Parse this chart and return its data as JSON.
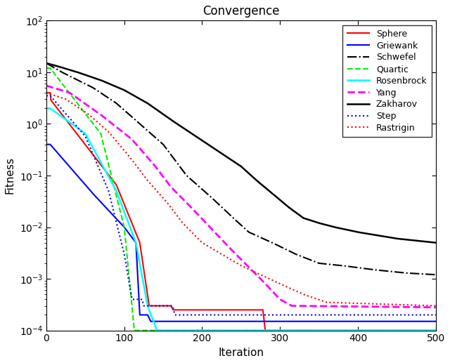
{
  "title": "Convergence",
  "xlabel": "Iteration",
  "ylabel": "Fitness",
  "xlim": [
    0,
    500
  ],
  "ylim": [
    0.0001,
    100.0
  ],
  "series": {
    "Sphere": {
      "color": "#ff0000",
      "linestyle": "-",
      "linewidth": 1.5,
      "label": "Sphere"
    },
    "Griewank": {
      "color": "#0000ff",
      "linestyle": "-",
      "linewidth": 1.5,
      "label": "Griewank"
    },
    "Schwefel": {
      "color": "#000000",
      "linestyle": "-.",
      "linewidth": 1.5,
      "label": "Schwefel"
    },
    "Quartic": {
      "color": "#00ee00",
      "linestyle": "--",
      "linewidth": 1.5,
      "label": "Quartic"
    },
    "Rosenbrock": {
      "color": "#00ffff",
      "linestyle": "-",
      "linewidth": 1.8,
      "label": "Rosenbrock"
    },
    "Yang": {
      "color": "#ff00ff",
      "linestyle": "--",
      "linewidth": 2.0,
      "label": "Yang"
    },
    "Zakharov": {
      "color": "#000000",
      "linestyle": "-",
      "linewidth": 1.8,
      "label": "Zakharov"
    },
    "Step": {
      "color": "#0000ff",
      "linestyle": ":",
      "linewidth": 1.5,
      "label": "Step"
    },
    "Rastrigin": {
      "color": "#ff0000",
      "linestyle": ":",
      "linewidth": 1.5,
      "label": "Rastrigin"
    }
  },
  "background": "#ffffff",
  "legend_loc": "upper right",
  "legend_fontsize": 9
}
